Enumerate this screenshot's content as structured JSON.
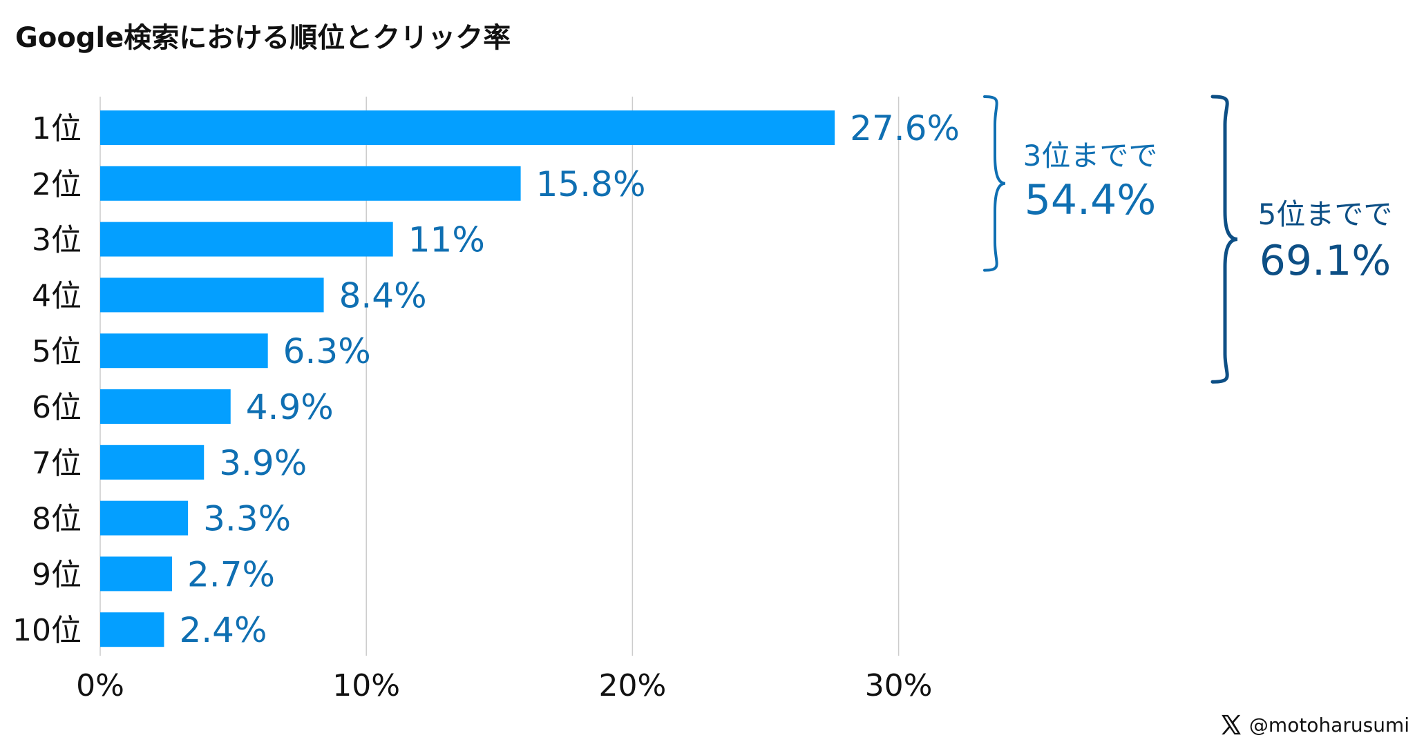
{
  "title": "Google検索における順位とクリック率",
  "credit": {
    "icon": "x-logo-icon",
    "handle": "@motoharusumi"
  },
  "colors": {
    "bar": "#049FFF",
    "value_label": "#0F6FB2",
    "brace_small": "#0F6FB2",
    "brace_large": "#0D4F85",
    "grid": "#CCCCCC"
  },
  "chart_data": {
    "type": "bar",
    "orientation": "horizontal",
    "title": "Google検索における順位とクリック率",
    "categories": [
      "1位",
      "2位",
      "3位",
      "4位",
      "5位",
      "6位",
      "7位",
      "8位",
      "9位",
      "10位"
    ],
    "values": [
      27.6,
      15.8,
      11,
      8.4,
      6.3,
      4.9,
      3.9,
      3.3,
      2.7,
      2.4
    ],
    "value_labels": [
      "27.6%",
      "15.8%",
      "11%",
      "8.4%",
      "6.3%",
      "4.9%",
      "3.9%",
      "3.3%",
      "2.7%",
      "2.4%"
    ],
    "xlim": [
      0,
      30
    ],
    "xticks": [
      0,
      10,
      20,
      30
    ],
    "xtick_labels": [
      "0%",
      "10%",
      "20%",
      "30%"
    ],
    "grid": true,
    "annotations": [
      {
        "from_index": 0,
        "to_index": 2,
        "line1": "3位までで",
        "line2": "54.4%"
      },
      {
        "from_index": 0,
        "to_index": 4,
        "line1": "5位までで",
        "line2": "69.1%"
      }
    ]
  }
}
